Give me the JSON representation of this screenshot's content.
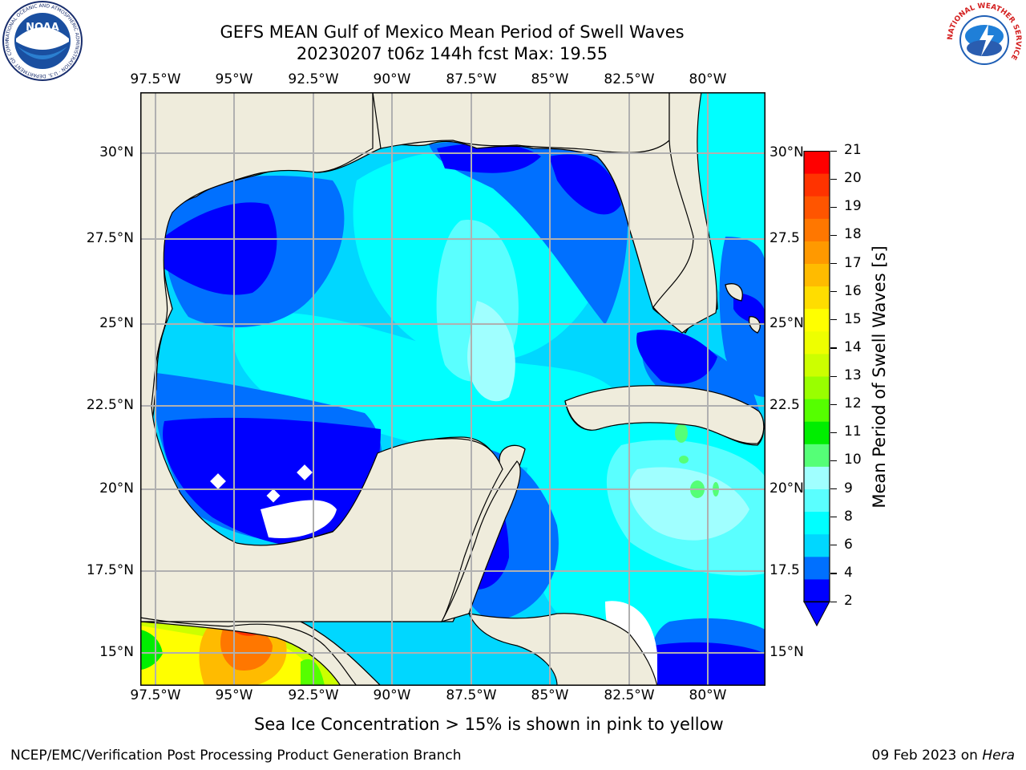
{
  "title": {
    "line1": "GEFS MEAN Gulf of Mexico Mean Period of Swell Waves",
    "line2": "20230207 t06z 144h fcst   Max: 19.55"
  },
  "map": {
    "lon_labels": [
      "97.5°W",
      "95°W",
      "92.5°W",
      "90°W",
      "87.5°W",
      "85°W",
      "82.5°W",
      "80°W"
    ],
    "lat_labels_left": [
      "30°N",
      "27.5°N",
      "25°N",
      "22.5°N",
      "20°N",
      "17.5°N",
      "15°N"
    ],
    "lat_labels_right": [
      "30°N",
      "27.5",
      "25°N",
      "22.5",
      "20°N",
      "17.5",
      "15°N"
    ],
    "land_color": "#efecdc",
    "grid_color": "#b0b0b0"
  },
  "colorbar": {
    "label": "Mean Period of Swell Waves [s]",
    "ticks": [
      "21",
      "20",
      "19",
      "18",
      "17",
      "16",
      "15",
      "14",
      "13",
      "12",
      "11",
      "10",
      "9",
      "8",
      "6",
      "4",
      "2"
    ],
    "colors": [
      "#0000ff",
      "#0070ff",
      "#00d7ff",
      "#00ffff",
      "#5affff",
      "#a0ffff",
      "#55ff77",
      "#00ee00",
      "#55ff00",
      "#99ff00",
      "#ccff00",
      "#eeff00",
      "#ffff00",
      "#ffdd00",
      "#ffbb00",
      "#ff9900",
      "#ff7700",
      "#ff5500",
      "#ff3300",
      "#ff0000"
    ]
  },
  "note": "Sea Ice Concentration > 15% is shown in pink to yellow",
  "footer": {
    "left": "NCEP/EMC/Verification Post Processing Product Generation Branch",
    "date": "09 Feb 2023 on ",
    "host": "Hera"
  },
  "logos": {
    "noaa_text": "NOAA",
    "noaa_ring": "NATIONAL OCEANIC AND ATMOSPHERIC ADMINISTRATION · U.S. DEPARTMENT OF COMMERCE",
    "nws_ring": "NATIONAL WEATHER SERVICE"
  }
}
